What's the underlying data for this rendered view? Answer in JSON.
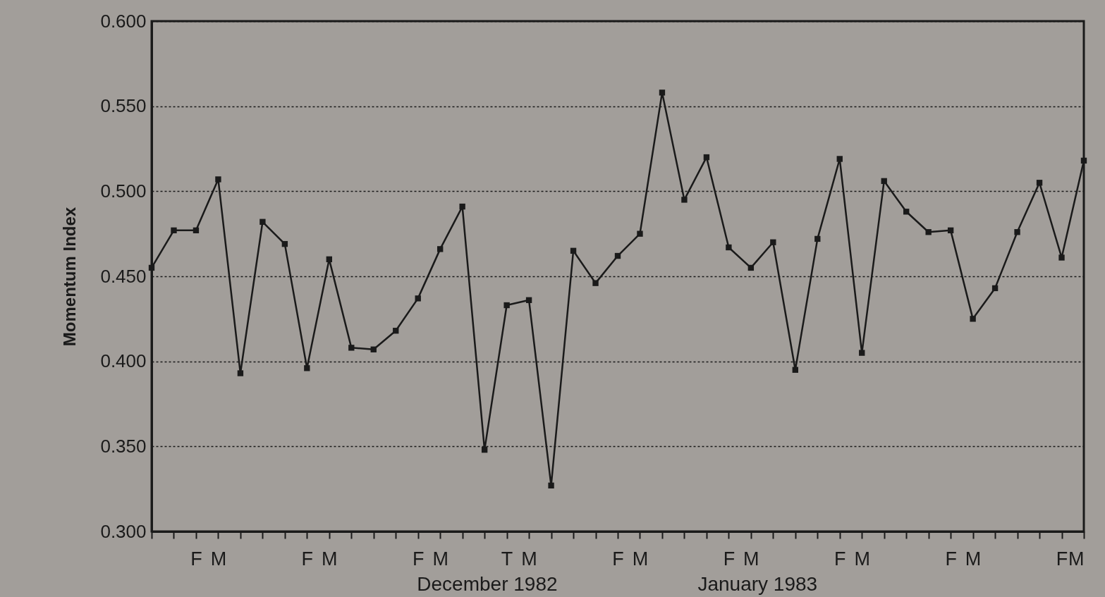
{
  "chart_data": {
    "type": "line",
    "ylabel": "Momentum Index",
    "categories": [
      null,
      null,
      "F",
      "M",
      null,
      null,
      null,
      "F",
      "M",
      null,
      null,
      null,
      "F",
      "M",
      null,
      null,
      "T",
      "M",
      null,
      null,
      null,
      "F",
      "M",
      null,
      null,
      null,
      "F",
      "M",
      null,
      null,
      null,
      "F",
      "M",
      null,
      null,
      null,
      "F",
      "M",
      null,
      null,
      null,
      "F",
      "M"
    ],
    "series": [
      {
        "color": "#1a1a1a",
        "values": [
          0.455,
          0.477,
          0.477,
          0.507,
          0.393,
          0.482,
          0.469,
          0.396,
          0.46,
          0.408,
          0.407,
          0.418,
          0.437,
          0.466,
          0.491,
          0.348,
          0.433,
          0.436,
          0.327,
          0.465,
          0.446,
          0.462,
          0.475,
          0.558,
          0.495,
          0.52,
          0.467,
          0.455,
          0.47,
          0.395,
          0.472,
          0.519,
          0.405,
          0.506,
          0.488,
          0.476,
          0.477,
          0.425,
          0.443,
          0.476,
          0.505,
          0.461,
          0.518
        ]
      }
    ],
    "ylim": [
      0.3,
      0.6
    ],
    "yticks": [
      {
        "value": 0.3,
        "label": "0.300"
      },
      {
        "value": 0.35,
        "label": "0.350"
      },
      {
        "value": 0.4,
        "label": "0.400"
      },
      {
        "value": 0.45,
        "label": "0.450"
      },
      {
        "value": 0.5,
        "label": "0.500"
      },
      {
        "value": 0.55,
        "label": "0.550"
      },
      {
        "value": 0.6,
        "label": "0.600"
      }
    ],
    "annotations": [
      "December 1982",
      "January 1983"
    ],
    "grid": "y",
    "line_style": "solid",
    "marker": "square"
  }
}
